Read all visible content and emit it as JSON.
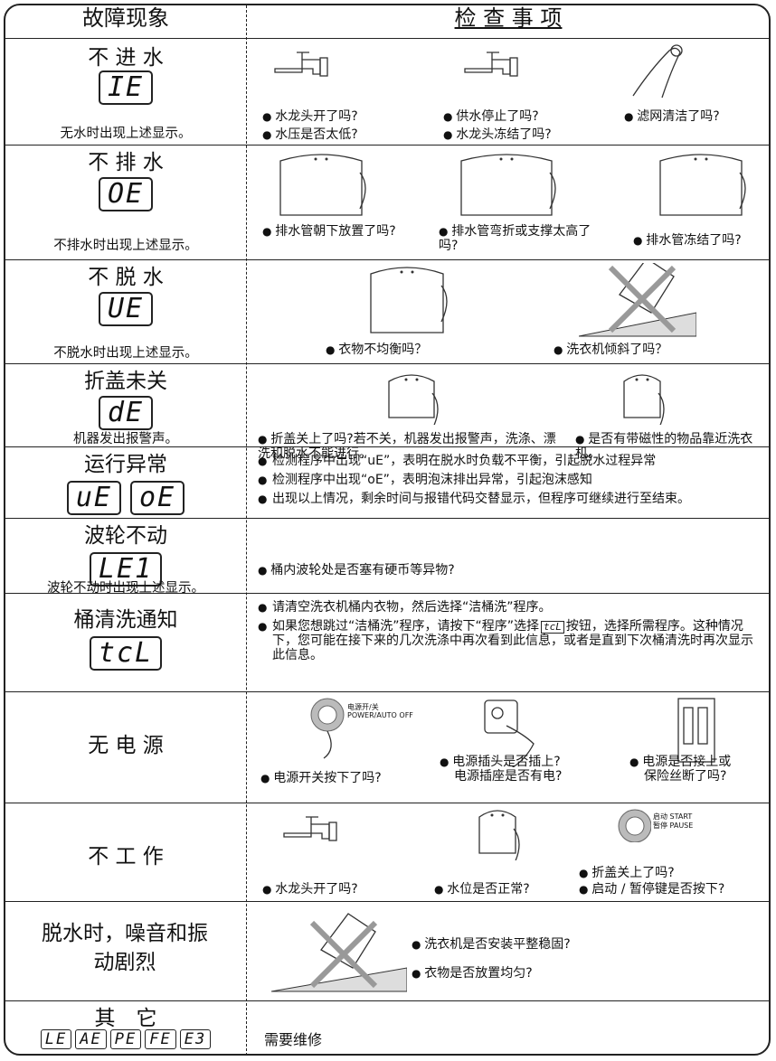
{
  "header": {
    "fault": "故障现象",
    "check": "检 查 事 项"
  },
  "rows": [
    {
      "fault": "不 进 水",
      "codes": [
        "IE"
      ],
      "note": "无水时出现上述显示。",
      "checks": [
        "水龙头开了吗?",
        "水压是否太低?",
        "供水停止了吗?",
        "水龙头冻结了吗?",
        "滤网清洁了吗?"
      ]
    },
    {
      "fault": "不 排 水",
      "codes": [
        "OE"
      ],
      "note": "不排水时出现上述显示。",
      "checks": [
        "排水管朝下放置了吗?",
        "排水管弯折或支撑太高了吗?",
        "排水管冻结了吗?"
      ]
    },
    {
      "fault": "不 脱 水",
      "codes": [
        "UE"
      ],
      "note": "不脱水时出现上述显示。",
      "checks": [
        "衣物不均衡吗？",
        "洗衣机倾斜了吗？"
      ]
    },
    {
      "fault": "折盖未关",
      "codes": [
        "dE"
      ],
      "note": "机器发出报警声。",
      "checks": [
        "折盖关上了吗?若不关，机器发出报警声，洗涤、漂洗和脱水不能进行。",
        "是否有带磁性的物品靠近洗衣机。"
      ]
    },
    {
      "fault": "运行异常",
      "codes": [
        "uE",
        "oE"
      ],
      "checks": [
        "检测程序中出现“uE”，表明在脱水时负载不平衡，引起脱水过程异常",
        "检测程序中出现“oE”，表明泡沫排出异常，引起泡沫感知",
        "出现以上情况，剩余时间与报错代码交替显示，但程序可继续进行至结束。"
      ]
    },
    {
      "fault": "波轮不动",
      "codes": [
        "LE1"
      ],
      "note": "波轮不动时出现上述显示。",
      "checks": [
        "桶内波轮处是否塞有硬币等异物?"
      ]
    },
    {
      "fault": "桶清洗通知",
      "codes": [
        "tcL"
      ],
      "checks": [
        "请清空洗衣机桶内衣物，然后选择“洁桶洗”程序。",
        {
          "before": "如果您想跳过“洁桶洗”程序，请按下“程序”选择",
          "code": "tcL",
          "after": "按钮，选择所需程序。这种情况下，您可能在接下来的几次洗涤中再次看到此信息，或者是直到下次桶清洗时再次显示此信息。"
        }
      ]
    },
    {
      "fault": "无 电 源",
      "icon_labels": [
        "电源开/关",
        "POWER/AUTO OFF"
      ],
      "checks": [
        "电源开关按下了吗?",
        [
          "电源插头是否插上?",
          "电源插座是否有电?"
        ],
        [
          "电源是否接上或",
          "保险丝断了吗?"
        ]
      ]
    },
    {
      "fault": "不 工 作",
      "icon_labels": [
        "启动 START",
        "暂停 PAUSE"
      ],
      "checks": [
        "水龙头开了吗?",
        "水位是否正常?",
        "折盖关上了吗?",
        "启动 / 暂停键是否按下?"
      ]
    },
    {
      "fault": "脱水时，噪音和振动剧烈",
      "checks": [
        "洗衣机是否安装平整稳固?",
        "衣物是否放置均匀?"
      ]
    },
    {
      "fault": "其　它",
      "codes": [
        "LE",
        "AE",
        "PE",
        "FE",
        "E3"
      ],
      "checks": [
        "需要维修"
      ]
    }
  ]
}
